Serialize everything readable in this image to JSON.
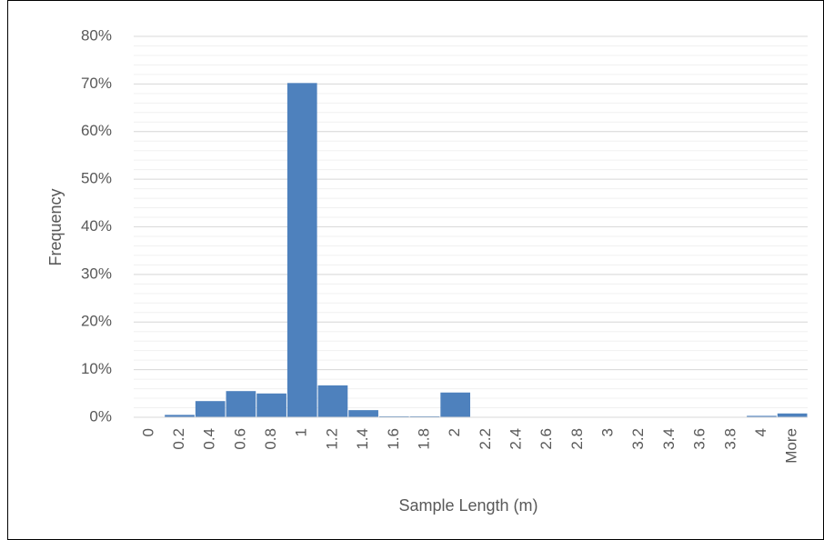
{
  "chart_data": {
    "type": "bar",
    "x_label": "Sample Length (m)",
    "y_label": "Frequency",
    "categories": [
      "0",
      "0.2",
      "0.4",
      "0.6",
      "0.8",
      "1",
      "1.2",
      "1.4",
      "1.6",
      "1.8",
      "2",
      "2.2",
      "2.4",
      "2.6",
      "2.8",
      "3",
      "3.2",
      "3.4",
      "3.6",
      "3.8",
      "4",
      "More"
    ],
    "values": [
      0,
      0.5,
      3.4,
      5.5,
      5.0,
      70.2,
      6.7,
      1.5,
      0.2,
      0.2,
      5.2,
      0,
      0,
      0,
      0,
      0,
      0,
      0,
      0,
      0,
      0.3,
      0.8
    ],
    "color": "#4e81bd",
    "ylim": [
      0,
      80
    ],
    "yticks": [
      {
        "value": 0,
        "label": "0%"
      },
      {
        "value": 10,
        "label": "10%"
      },
      {
        "value": 20,
        "label": "20%"
      },
      {
        "value": 30,
        "label": "30%"
      },
      {
        "value": 40,
        "label": "40%"
      },
      {
        "value": 50,
        "label": "50%"
      },
      {
        "value": 60,
        "label": "60%"
      },
      {
        "value": 70,
        "label": "70%"
      },
      {
        "value": 80,
        "label": "80%"
      }
    ],
    "grid": true,
    "minor_grid_step": 2
  }
}
